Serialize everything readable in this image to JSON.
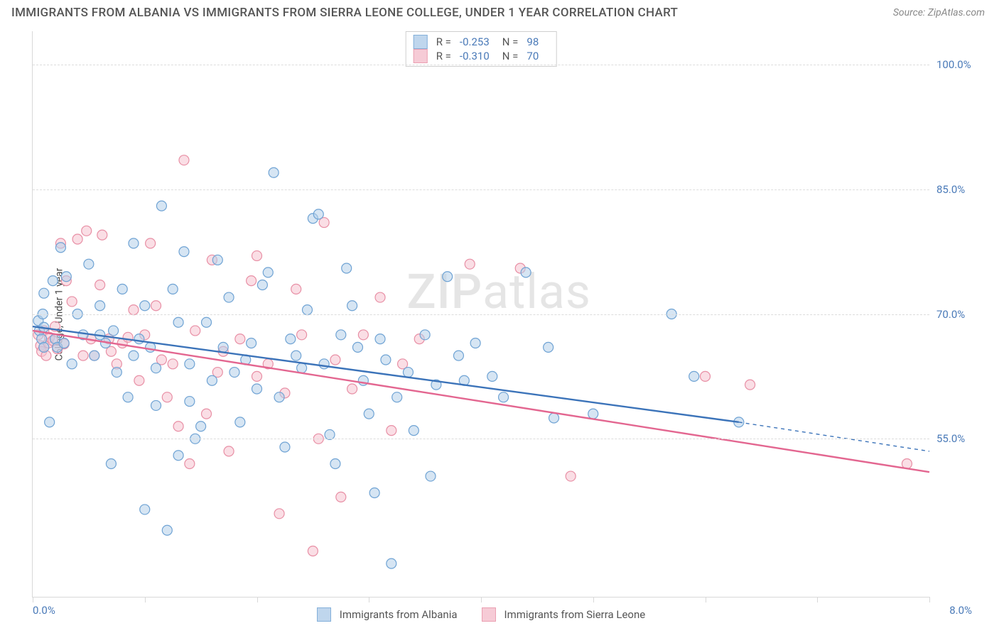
{
  "header": {
    "title": "IMMIGRANTS FROM ALBANIA VS IMMIGRANTS FROM SIERRA LEONE COLLEGE, UNDER 1 YEAR CORRELATION CHART",
    "source": "Source: ZipAtlas.com"
  },
  "watermark": {
    "part1": "ZIP",
    "part2": "atlas"
  },
  "chart": {
    "type": "scatter",
    "y_axis_title": "College, Under 1 year",
    "xlim": [
      0,
      8
    ],
    "ylim": [
      36,
      104
    ],
    "x_min_label": "0.0%",
    "x_max_label": "8.0%",
    "y_ticks": [
      55.0,
      70.0,
      85.0,
      100.0
    ],
    "y_tick_labels": [
      "55.0%",
      "70.0%",
      "85.0%",
      "100.0%"
    ],
    "x_tick_count": 9,
    "grid_color": "#dcdcdc",
    "axis_color": "#d8d8d8",
    "tick_label_color": "#4a7ab8",
    "background_color": "#ffffff",
    "marker_radius": 7,
    "marker_stroke_width": 1.2,
    "trend_line_width": 2.4,
    "series": [
      {
        "id": "albania",
        "legend_label": "Immigrants from Albania",
        "fill": "#b5d0ea",
        "stroke": "#6fa3d4",
        "fill_opacity": 0.55,
        "R": "-0.253",
        "N": "98",
        "trend": {
          "x1": 0,
          "y1": 68.5,
          "x2": 6.3,
          "y2": 57.0,
          "ext_x2": 8.0,
          "ext_y2": 53.5,
          "color": "#3b73b9"
        },
        "points": [
          [
            0.05,
            69.2
          ],
          [
            0.06,
            68.0
          ],
          [
            0.08,
            67.0
          ],
          [
            0.09,
            70.0
          ],
          [
            0.1,
            72.5
          ],
          [
            0.1,
            66.0
          ],
          [
            0.1,
            68.4
          ],
          [
            0.15,
            57.0
          ],
          [
            0.18,
            74.0
          ],
          [
            0.2,
            67.0
          ],
          [
            0.22,
            66.0
          ],
          [
            0.25,
            78.0
          ],
          [
            0.28,
            66.5
          ],
          [
            0.3,
            74.5
          ],
          [
            0.35,
            64.0
          ],
          [
            0.4,
            70.0
          ],
          [
            0.45,
            67.5
          ],
          [
            0.5,
            76.0
          ],
          [
            0.55,
            65.0
          ],
          [
            0.6,
            67.5
          ],
          [
            0.6,
            71.0
          ],
          [
            0.65,
            66.5
          ],
          [
            0.7,
            52.0
          ],
          [
            0.72,
            68.0
          ],
          [
            0.75,
            63.0
          ],
          [
            0.8,
            73.0
          ],
          [
            0.85,
            60.0
          ],
          [
            0.9,
            78.5
          ],
          [
            0.9,
            65.0
          ],
          [
            0.95,
            67.0
          ],
          [
            1.0,
            46.5
          ],
          [
            1.0,
            71.0
          ],
          [
            1.05,
            66.0
          ],
          [
            1.1,
            63.5
          ],
          [
            1.1,
            59.0
          ],
          [
            1.15,
            83.0
          ],
          [
            1.2,
            44.0
          ],
          [
            1.25,
            73.0
          ],
          [
            1.3,
            69.0
          ],
          [
            1.3,
            53.0
          ],
          [
            1.35,
            77.5
          ],
          [
            1.4,
            64.0
          ],
          [
            1.4,
            59.5
          ],
          [
            1.45,
            55.0
          ],
          [
            1.5,
            56.5
          ],
          [
            1.55,
            69.0
          ],
          [
            1.6,
            62.0
          ],
          [
            1.65,
            76.5
          ],
          [
            1.7,
            66.0
          ],
          [
            1.75,
            72.0
          ],
          [
            1.8,
            63.0
          ],
          [
            1.85,
            57.0
          ],
          [
            1.9,
            64.5
          ],
          [
            1.95,
            66.5
          ],
          [
            2.0,
            61.0
          ],
          [
            2.05,
            73.5
          ],
          [
            2.1,
            75.0
          ],
          [
            2.15,
            87.0
          ],
          [
            2.2,
            60.0
          ],
          [
            2.25,
            54.0
          ],
          [
            2.3,
            67.0
          ],
          [
            2.35,
            65.0
          ],
          [
            2.4,
            63.5
          ],
          [
            2.45,
            70.5
          ],
          [
            2.5,
            81.5
          ],
          [
            2.55,
            82.0
          ],
          [
            2.6,
            64.0
          ],
          [
            2.65,
            55.5
          ],
          [
            2.7,
            52.0
          ],
          [
            2.75,
            67.5
          ],
          [
            2.8,
            75.5
          ],
          [
            2.85,
            71.0
          ],
          [
            2.9,
            66.0
          ],
          [
            2.95,
            62.0
          ],
          [
            3.0,
            58.0
          ],
          [
            3.05,
            48.5
          ],
          [
            3.1,
            67.0
          ],
          [
            3.15,
            64.5
          ],
          [
            3.2,
            40.0
          ],
          [
            3.25,
            60.0
          ],
          [
            3.35,
            63.0
          ],
          [
            3.4,
            56.0
          ],
          [
            3.5,
            67.5
          ],
          [
            3.55,
            50.5
          ],
          [
            3.6,
            61.5
          ],
          [
            3.7,
            74.5
          ],
          [
            3.8,
            65.0
          ],
          [
            3.85,
            62.0
          ],
          [
            3.95,
            66.5
          ],
          [
            4.1,
            62.5
          ],
          [
            4.2,
            60.0
          ],
          [
            4.4,
            75.0
          ],
          [
            4.6,
            66.0
          ],
          [
            4.65,
            57.5
          ],
          [
            5.0,
            58.0
          ],
          [
            5.7,
            70.0
          ],
          [
            5.9,
            62.5
          ],
          [
            6.3,
            57.0
          ]
        ]
      },
      {
        "id": "sierra_leone",
        "legend_label": "Immigrants from Sierra Leone",
        "fill": "#f5c3cf",
        "stroke": "#e88fa5",
        "fill_opacity": 0.55,
        "R": "-0.310",
        "N": "70",
        "trend": {
          "x1": 0,
          "y1": 68.0,
          "x2": 8.0,
          "y2": 51.0,
          "color": "#e36690"
        },
        "points": [
          [
            0.05,
            67.5
          ],
          [
            0.07,
            66.2
          ],
          [
            0.08,
            65.5
          ],
          [
            0.1,
            66.0
          ],
          [
            0.1,
            68.0
          ],
          [
            0.12,
            65.0
          ],
          [
            0.14,
            66.5
          ],
          [
            0.15,
            67.2
          ],
          [
            0.18,
            66.8
          ],
          [
            0.2,
            68.5
          ],
          [
            0.22,
            65.8
          ],
          [
            0.25,
            78.5
          ],
          [
            0.28,
            66.4
          ],
          [
            0.3,
            74.0
          ],
          [
            0.35,
            71.5
          ],
          [
            0.4,
            79.0
          ],
          [
            0.45,
            65.0
          ],
          [
            0.48,
            80.0
          ],
          [
            0.52,
            67.0
          ],
          [
            0.55,
            65.0
          ],
          [
            0.6,
            73.5
          ],
          [
            0.62,
            79.5
          ],
          [
            0.68,
            67.0
          ],
          [
            0.7,
            65.5
          ],
          [
            0.75,
            64.0
          ],
          [
            0.8,
            66.5
          ],
          [
            0.85,
            67.2
          ],
          [
            0.9,
            70.5
          ],
          [
            0.95,
            62.0
          ],
          [
            1.0,
            67.5
          ],
          [
            1.05,
            78.5
          ],
          [
            1.1,
            71.0
          ],
          [
            1.15,
            64.5
          ],
          [
            1.2,
            60.0
          ],
          [
            1.25,
            64.0
          ],
          [
            1.3,
            56.5
          ],
          [
            1.35,
            88.5
          ],
          [
            1.4,
            52.0
          ],
          [
            1.45,
            68.0
          ],
          [
            1.55,
            58.0
          ],
          [
            1.6,
            76.5
          ],
          [
            1.65,
            63.0
          ],
          [
            1.7,
            65.5
          ],
          [
            1.75,
            53.5
          ],
          [
            1.85,
            67.0
          ],
          [
            1.95,
            74.0
          ],
          [
            2.0,
            62.5
          ],
          [
            2.0,
            77.0
          ],
          [
            2.1,
            64.0
          ],
          [
            2.2,
            46.0
          ],
          [
            2.25,
            60.5
          ],
          [
            2.35,
            73.0
          ],
          [
            2.4,
            67.5
          ],
          [
            2.5,
            41.5
          ],
          [
            2.55,
            55.0
          ],
          [
            2.6,
            81.0
          ],
          [
            2.7,
            64.5
          ],
          [
            2.75,
            48.0
          ],
          [
            2.85,
            61.0
          ],
          [
            2.95,
            67.5
          ],
          [
            3.1,
            72.0
          ],
          [
            3.2,
            56.0
          ],
          [
            3.3,
            64.0
          ],
          [
            3.45,
            67.0
          ],
          [
            3.9,
            76.0
          ],
          [
            4.35,
            75.5
          ],
          [
            4.8,
            50.5
          ],
          [
            6.0,
            62.5
          ],
          [
            6.4,
            61.5
          ],
          [
            7.8,
            52.0
          ]
        ]
      }
    ]
  }
}
